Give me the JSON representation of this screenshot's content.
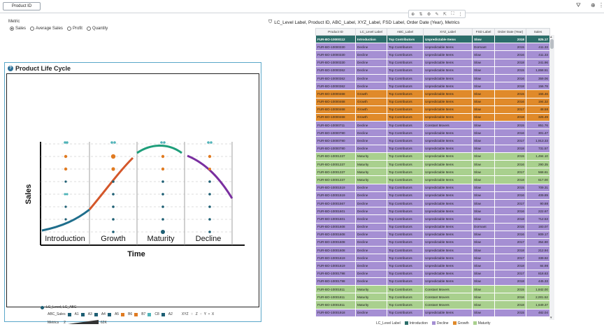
{
  "header": {
    "filter_button": "Product ID",
    "icons": [
      "filter-clear-icon",
      "globe-icon",
      "more-icon"
    ]
  },
  "metric": {
    "label": "Metric",
    "options": [
      "Sales",
      "Average Sales",
      "Profit",
      "Quantity"
    ],
    "selected": "Sales"
  },
  "plc": {
    "title": "Product Life Cycle",
    "xlabel": "Time",
    "ylabel": "Sales",
    "stages": [
      "Introduction",
      "Growth",
      "Maturity",
      "Decline"
    ],
    "colors": {
      "introduction": "#1f6e8c",
      "growth": "#d4572a",
      "maturity": "#1e9e7a",
      "decline": "#7a2fa0"
    }
  },
  "legend": {
    "title": "LC_Level, LC_ABC",
    "abc_label": "ABC_Sales",
    "abc_items": [
      {
        "label": "A1",
        "color": "#1e5f74"
      },
      {
        "label": "A3",
        "color": "#1e5f74"
      },
      {
        "label": "A4",
        "color": "#1e5f74"
      },
      {
        "label": "A5",
        "color": "#1e5f74"
      },
      {
        "label": "B6",
        "color": "#e07b22"
      },
      {
        "label": "B7",
        "color": "#e07b22"
      },
      {
        "label": "C8",
        "color": "#4fb3b8"
      },
      {
        "label": "A2",
        "color": "#1e5f74"
      }
    ],
    "xyz_label": "XYZ",
    "xyz_items": [
      "Z",
      "Y",
      "X"
    ],
    "metrics_label": "Metrics",
    "metrics_min": "2",
    "metrics_max": "62K"
  },
  "table": {
    "title": "LC_Level Label, Product ID, ABC_Label, XYZ_Label, FSD Label, Order Date (Year), Metrics",
    "columns": [
      "Product ID",
      "LC_Level Label",
      "ABC_Label",
      "XYZ_Label",
      "FSD Label",
      "Order Date (Year)",
      "Sales"
    ],
    "colors": {
      "Introduction": "#2c6e6a",
      "Decline": "#a58fd3",
      "Growth": "#e08a2a",
      "Maturity": "#a9d08e"
    },
    "rows": [
      [
        "FUR-BO-10000112",
        "Introduction",
        "Top Contributors",
        "Unpredictable Items",
        "Slow",
        "2018",
        "825.17"
      ],
      [
        "FUR-BO-10000330",
        "Decline",
        "Top Contributors",
        "Unpredictable Items",
        "Dormant",
        "2015",
        "411.33"
      ],
      [
        "FUR-BO-10000330",
        "Decline",
        "Top Contributors",
        "Unpredictable Items",
        "Slow",
        "2016",
        "411.33"
      ],
      [
        "FUR-BO-10000330",
        "Decline",
        "Top Contributors",
        "Unpredictable Items",
        "Slow",
        "2018",
        "241.96"
      ],
      [
        "FUR-BO-10000362",
        "Decline",
        "Top Contributors",
        "Unpredictable Items",
        "Slow",
        "2015",
        "1,658.51"
      ],
      [
        "FUR-BO-10000362",
        "Decline",
        "Top Contributors",
        "Unpredictable Items",
        "Slow",
        "2016",
        "359.06"
      ],
      [
        "FUR-BO-10000362",
        "Decline",
        "Top Contributors",
        "Unpredictable Items",
        "Slow",
        "2018",
        "156.78"
      ],
      [
        "FUR-BO-10000468",
        "Growth",
        "Top Contributors",
        "Unpredictable Items",
        "Slow",
        "2015",
        "155.46"
      ],
      [
        "FUR-BO-10000468",
        "Growth",
        "Top Contributors",
        "Unpredictable Items",
        "Slow",
        "2016",
        "194.32"
      ],
      [
        "FUR-BO-10000468",
        "Growth",
        "Top Contributors",
        "Unpredictable Items",
        "Slow",
        "2017",
        "48.58"
      ],
      [
        "FUR-BO-10000468",
        "Growth",
        "Top Contributors",
        "Unpredictable Items",
        "Slow",
        "2018",
        "325.49"
      ],
      [
        "FUR-BO-10000711",
        "Decline",
        "Top Contributors",
        "Constant Movers",
        "Slow",
        "2015",
        "851.76"
      ],
      [
        "FUR-BO-10000780",
        "Decline",
        "Top Contributors",
        "Unpredictable Items",
        "Slow",
        "2016",
        "301.47"
      ],
      [
        "FUR-BO-10000780",
        "Decline",
        "Top Contributors",
        "Unpredictable Items",
        "Slow",
        "2017",
        "1,913.33"
      ],
      [
        "FUR-BO-10000780",
        "Decline",
        "Top Contributors",
        "Unpredictable Items",
        "Slow",
        "2018",
        "731.57"
      ],
      [
        "FUR-BO-10001337",
        "Maturity",
        "Top Contributors",
        "Unpredictable Items",
        "Slow",
        "2015",
        "1,494.10"
      ],
      [
        "FUR-BO-10001337",
        "Maturity",
        "Top Contributors",
        "Unpredictable Items",
        "Slow",
        "2016",
        "290.35"
      ],
      [
        "FUR-BO-10001337",
        "Maturity",
        "Top Contributors",
        "Unpredictable Items",
        "Slow",
        "2017",
        "568.61"
      ],
      [
        "FUR-BO-10001337",
        "Maturity",
        "Top Contributors",
        "Unpredictable Items",
        "Slow",
        "2018",
        "617.00"
      ],
      [
        "FUR-BO-10001519",
        "Decline",
        "Top Contributors",
        "Unpredictable Items",
        "Slow",
        "2015",
        "709.31"
      ],
      [
        "FUR-BO-10001519",
        "Decline",
        "Top Contributors",
        "Unpredictable Items",
        "Slow",
        "2016",
        "409.89"
      ],
      [
        "FUR-BO-10001567",
        "Decline",
        "Top Contributors",
        "Unpredictable Items",
        "Slow",
        "2017",
        "90.88"
      ],
      [
        "FUR-BO-10001601",
        "Decline",
        "Top Contributors",
        "Unpredictable Items",
        "Slow",
        "2016",
        "222.67"
      ],
      [
        "FUR-BO-10001601",
        "Decline",
        "Top Contributors",
        "Unpredictable Items",
        "Slow",
        "2018",
        "712.53"
      ],
      [
        "FUR-BO-10001608",
        "Decline",
        "Top Contributors",
        "Unpredictable Items",
        "Dormant",
        "2015",
        "193.07"
      ],
      [
        "FUR-BO-10001608",
        "Decline",
        "Top Contributors",
        "Unpredictable Items",
        "Slow",
        "2016",
        "809.17"
      ],
      [
        "FUR-BO-10001608",
        "Decline",
        "Top Contributors",
        "Unpredictable Items",
        "Slow",
        "2017",
        "354.90"
      ],
      [
        "FUR-BO-10001608",
        "Decline",
        "Top Contributors",
        "Unpredictable Items",
        "Slow",
        "2018",
        "212.94"
      ],
      [
        "FUR-BO-10001619",
        "Decline",
        "Top Contributors",
        "Unpredictable Items",
        "Slow",
        "2017",
        "339.92"
      ],
      [
        "FUR-BO-10001619",
        "Decline",
        "Top Contributors",
        "Unpredictable Items",
        "Slow",
        "2018",
        "84.98"
      ],
      [
        "FUR-BO-10001798",
        "Decline",
        "Top Contributors",
        "Unpredictable Items",
        "Slow",
        "2017",
        "818.63"
      ],
      [
        "FUR-BO-10001798",
        "Decline",
        "Top Contributors",
        "Unpredictable Items",
        "Slow",
        "2018",
        "445.33"
      ],
      [
        "FUR-BO-10001811",
        "Maturity",
        "Top Contributors",
        "Constant Movers",
        "Slow",
        "2015",
        "1,842.00"
      ],
      [
        "FUR-BO-10001811",
        "Maturity",
        "Top Contributors",
        "Constant Movers",
        "Slow",
        "2016",
        "2,001.52"
      ],
      [
        "FUR-BO-10001811",
        "Maturity",
        "Top Contributors",
        "Constant Movers",
        "Slow",
        "2018",
        "1,649.37"
      ],
      [
        "FUR-BO-10001918",
        "Decline",
        "Top Contributors",
        "Unpredictable Items",
        "Slow",
        "2015",
        "482.04"
      ]
    ]
  },
  "table_legend": {
    "label": "LC_Level Label",
    "items": [
      {
        "label": "Introduction",
        "color": "#2c6e6a"
      },
      {
        "label": "Decline",
        "color": "#a58fd3"
      },
      {
        "label": "Growth",
        "color": "#e08a2a"
      },
      {
        "label": "Maturity",
        "color": "#a9d08e"
      }
    ]
  }
}
